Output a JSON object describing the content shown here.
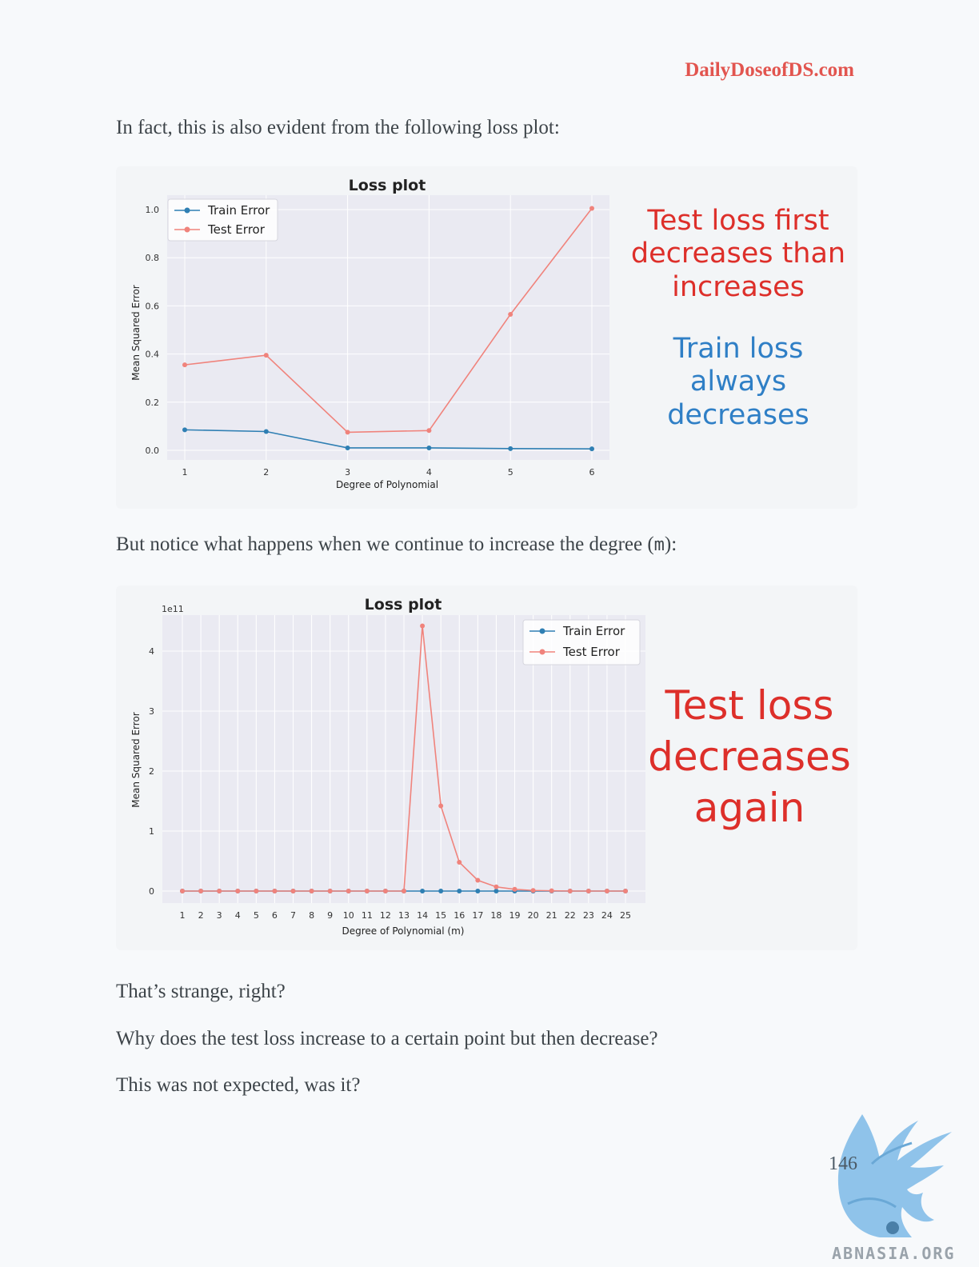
{
  "header": {
    "site": "DailyDoseofDS.com"
  },
  "paragraphs": {
    "p1": "In fact, this is also evident from the following loss plot:",
    "p2_before": "But notice what happens when we continue to increase the degree (",
    "p2_var": "m",
    "p2_after": "):",
    "p3": "That’s strange, right?",
    "p4": "Why does the test loss increase to a certain point but then decrease?",
    "p5": "This was not expected, was it?"
  },
  "annotations": {
    "chart1_red": [
      "Test loss first",
      "decreases than",
      "increases"
    ],
    "chart1_blue": [
      "Train loss",
      "always",
      "decreases"
    ],
    "chart2_red": [
      "Test loss",
      "decreases",
      "again"
    ]
  },
  "colors": {
    "train": "#2f7fb3",
    "test": "#f0837c",
    "plot_bg": "#eaeaf2",
    "accent_red": "#dd2f2a",
    "accent_blue": "#2f7fc6"
  },
  "footer": {
    "page_number": "146",
    "watermark": "ABNASIA.ORG"
  },
  "chart_data": [
    {
      "type": "line",
      "title": "Loss plot",
      "xlabel": "Degree of Polynomial",
      "ylabel": "Mean Squared Error",
      "x": [
        1,
        2,
        3,
        4,
        5,
        6
      ],
      "xticks": [
        "1",
        "2",
        "3",
        "4",
        "5",
        "6"
      ],
      "yticks": [
        "0.0",
        "0.2",
        "0.4",
        "0.6",
        "0.8",
        "1.0"
      ],
      "ylim": [
        -0.04,
        1.06
      ],
      "grid": true,
      "legend": "top-left",
      "series": [
        {
          "name": "Train Error",
          "values": [
            0.085,
            0.078,
            0.01,
            0.01,
            0.007,
            0.006
          ]
        },
        {
          "name": "Test Error",
          "values": [
            0.355,
            0.395,
            0.075,
            0.082,
            0.565,
            1.005
          ]
        }
      ]
    },
    {
      "type": "line",
      "title": "Loss plot",
      "xlabel": "Degree of Polynomial (m)",
      "ylabel": "Mean Squared Error",
      "scale_label": "1e11",
      "x": [
        1,
        2,
        3,
        4,
        5,
        6,
        7,
        8,
        9,
        10,
        11,
        12,
        13,
        14,
        15,
        16,
        17,
        18,
        19,
        20,
        21,
        22,
        23,
        24,
        25
      ],
      "xticks": [
        "1",
        "2",
        "3",
        "4",
        "5",
        "6",
        "7",
        "8",
        "9",
        "10",
        "11",
        "12",
        "13",
        "14",
        "15",
        "16",
        "17",
        "18",
        "19",
        "20",
        "21",
        "22",
        "23",
        "24",
        "25"
      ],
      "yticks": [
        "0",
        "1",
        "2",
        "3",
        "4"
      ],
      "ylim": [
        -0.2,
        4.6
      ],
      "grid": true,
      "legend": "top-right",
      "series": [
        {
          "name": "Train Error",
          "values": [
            0,
            0,
            0,
            0,
            0,
            0,
            0,
            0,
            0,
            0,
            0,
            0,
            0,
            0,
            0,
            0,
            0,
            0,
            0,
            0,
            0,
            0,
            0,
            0,
            0
          ]
        },
        {
          "name": "Test Error",
          "values": [
            0,
            0,
            0,
            0,
            0,
            0,
            0,
            0,
            0,
            0,
            0,
            0,
            0,
            4.42,
            1.42,
            0.48,
            0.18,
            0.07,
            0.03,
            0.01,
            0.005,
            0,
            0,
            0,
            0
          ]
        }
      ]
    }
  ]
}
